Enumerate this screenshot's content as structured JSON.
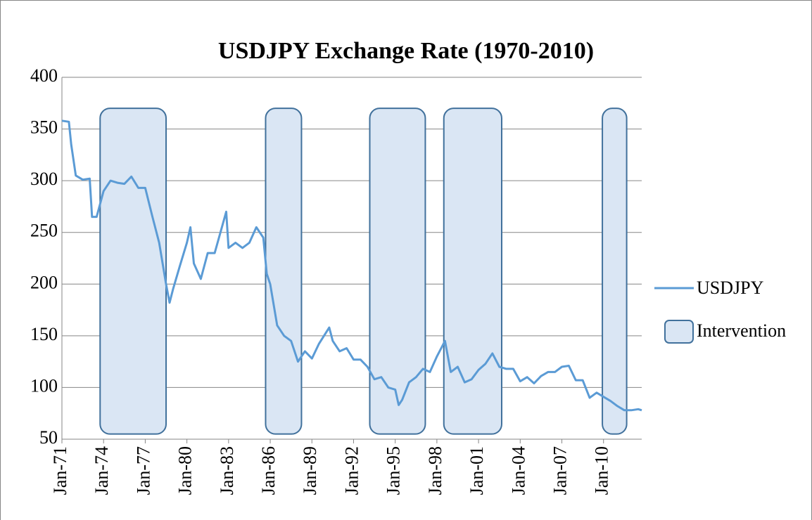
{
  "chart_data": {
    "type": "line",
    "title": "USDJPY Exchange Rate (1970-2010)",
    "x": [
      "Jan-71",
      "Jul-71",
      "Sep-71",
      "Jan-72",
      "Jul-72",
      "Jan-73",
      "Mar-73",
      "Jul-73",
      "Jan-74",
      "Jul-74",
      "Jan-75",
      "Jul-75",
      "Jan-76",
      "Jul-76",
      "Jan-77",
      "Jul-77",
      "Jan-78",
      "Jul-78",
      "Oct-78",
      "Jan-79",
      "Jul-79",
      "Jan-80",
      "Apr-80",
      "Jul-80",
      "Jan-81",
      "Jul-81",
      "Jan-82",
      "Nov-82",
      "Jan-83",
      "Jul-83",
      "Jan-84",
      "Jul-84",
      "Jan-85",
      "Jul-85",
      "Oct-85",
      "Jan-86",
      "Jul-86",
      "Jan-87",
      "Jul-87",
      "Jan-88",
      "Jul-88",
      "Jan-89",
      "Jul-89",
      "Apr-90",
      "Jul-90",
      "Jan-91",
      "Jul-91",
      "Jan-92",
      "Jul-92",
      "Jan-93",
      "Jul-93",
      "Jan-94",
      "Jul-94",
      "Jan-95",
      "Apr-95",
      "Jul-95",
      "Jan-96",
      "Jul-96",
      "Jan-97",
      "Jul-97",
      "Jan-98",
      "Aug-98",
      "Jan-99",
      "Jul-99",
      "Jan-00",
      "Jul-00",
      "Jan-01",
      "Jul-01",
      "Jan-02",
      "Jul-02",
      "Jan-03",
      "Jul-03",
      "Jan-04",
      "Jul-04",
      "Jan-05",
      "Jul-05",
      "Jan-06",
      "Jul-06",
      "Jan-07",
      "Jul-07",
      "Jan-08",
      "Jul-08",
      "Jan-09",
      "Jul-09",
      "Jan-10",
      "Jul-10",
      "Jan-11",
      "Jul-11",
      "Jan-12",
      "Jul-12",
      "Oct-12"
    ],
    "series": [
      {
        "name": "USDJPY",
        "color": "#5b9bd5",
        "values": [
          358,
          357,
          335,
          305,
          301,
          302,
          265,
          265,
          290,
          300,
          298,
          297,
          304,
          293,
          293,
          266,
          240,
          200,
          182,
          195,
          218,
          240,
          255,
          220,
          205,
          230,
          230,
          270,
          235,
          240,
          235,
          240,
          255,
          245,
          210,
          200,
          160,
          150,
          145,
          125,
          135,
          128,
          142,
          158,
          145,
          135,
          138,
          127,
          127,
          120,
          108,
          110,
          100,
          98,
          83,
          88,
          105,
          110,
          118,
          115,
          130,
          145,
          115,
          120,
          105,
          108,
          117,
          123,
          133,
          120,
          118,
          118,
          106,
          110,
          104,
          111,
          115,
          115,
          120,
          121,
          107,
          107,
          90,
          95,
          91,
          87,
          82,
          78,
          78,
          79,
          78
        ]
      }
    ],
    "interventions": {
      "name": "Intervention",
      "color": "#dae6f4",
      "edge": "#41719c",
      "ranges": [
        [
          "Oct-73",
          "Jul-78"
        ],
        [
          "Sep-85",
          "Apr-88"
        ],
        [
          "Mar-93",
          "Mar-97"
        ],
        [
          "Jul-98",
          "Sep-02"
        ],
        [
          "Dec-09",
          "Sep-11"
        ]
      ],
      "span": [
        55,
        370
      ]
    },
    "xlim": [
      "Jan-71",
      "Oct-12"
    ],
    "xticks": [
      "Jan-71",
      "Jan-74",
      "Jan-77",
      "Jan-80",
      "Jan-83",
      "Jan-86",
      "Jan-89",
      "Jan-92",
      "Jan-95",
      "Jan-98",
      "Jan-01",
      "Jan-04",
      "Jan-07",
      "Jan-10"
    ],
    "ylim": [
      50,
      400
    ],
    "yticks": [
      50,
      100,
      150,
      200,
      250,
      300,
      350,
      400
    ],
    "grid": true,
    "legend": "right"
  }
}
